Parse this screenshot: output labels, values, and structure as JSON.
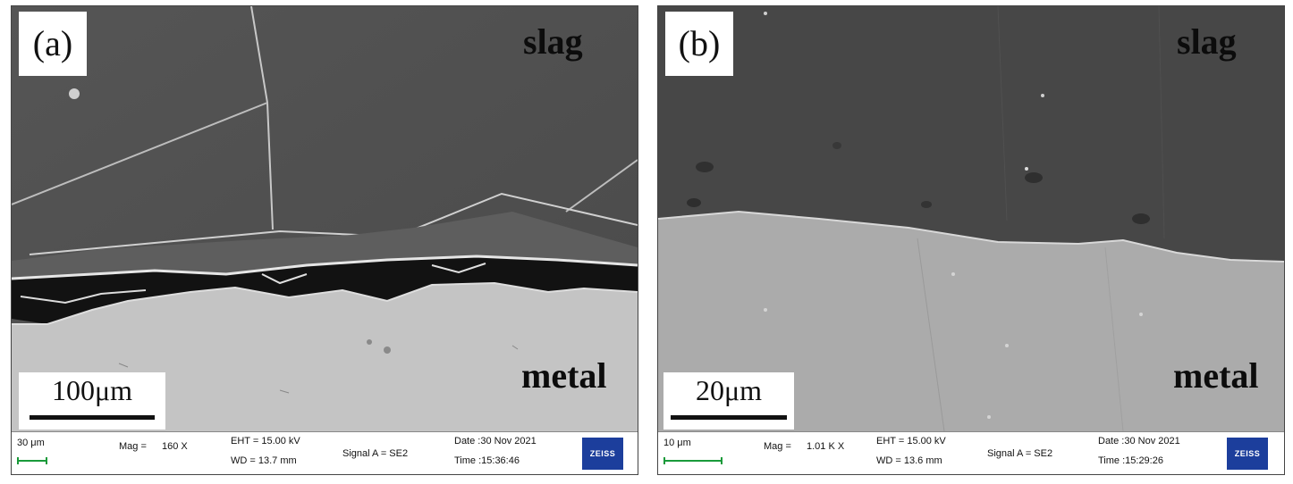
{
  "panels": [
    {
      "label": "(a)",
      "slag": "slag",
      "metal": "metal",
      "scalebar": "100μm",
      "databar": {
        "marker": "30 μm",
        "mag": "Mag =",
        "mag_value": "160 X",
        "eht": "EHT = 15.00 kV",
        "wd": "WD = 13.7 mm",
        "signal": "Signal A = SE2",
        "date": "Date :30 Nov 2021",
        "time": "Time :15:36:46",
        "logo": "ZEISS"
      }
    },
    {
      "label": "(b)",
      "slag": "slag",
      "metal": "metal",
      "scalebar": "20μm",
      "databar": {
        "marker": "10 μm",
        "mag": "Mag =",
        "mag_value": "1.01 K X",
        "eht": "EHT = 15.00 kV",
        "wd": "WD = 13.6 mm",
        "signal": "Signal A = SE2",
        "date": "Date :30 Nov 2021",
        "time": "Time :15:29:26",
        "logo": "ZEISS"
      }
    }
  ]
}
